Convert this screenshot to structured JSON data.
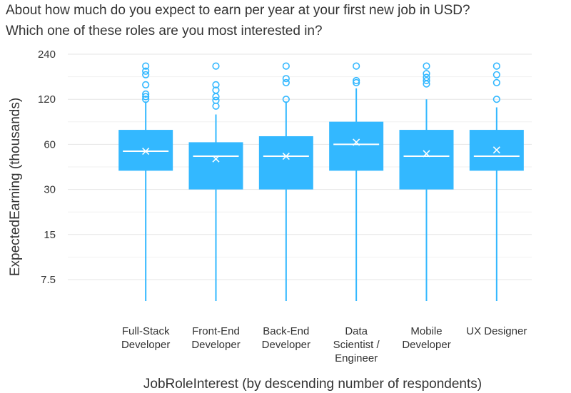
{
  "chart_data": {
    "type": "boxplot",
    "title_lines": [
      "About how much do you expect to earn per year at your first new job in USD?",
      "Which one of these roles are you most interested in?"
    ],
    "xlabel": "JobRoleInterest (by descending number of respondents)",
    "ylabel": "ExpectedEarning (thousands)",
    "yscale": "log2",
    "ylim": [
      5.4,
      270
    ],
    "yticks": [
      7.5,
      15,
      30,
      60,
      120,
      240
    ],
    "ytick_labels": [
      "7.5",
      "15",
      "30",
      "60",
      "120",
      "240"
    ],
    "color": "#33b8ff",
    "categories": [
      {
        "lines": [
          "Full-Stack",
          "Developer"
        ],
        "whisker_low": 5.4,
        "q1": 40,
        "median": 54,
        "q3": 75,
        "whisker_high": 116,
        "mean": 54,
        "outliers": [
          200,
          185,
          175,
          150,
          130,
          125,
          120
        ]
      },
      {
        "lines": [
          "Front-End",
          "Developer"
        ],
        "whisker_low": 5.4,
        "q1": 30,
        "median": 50,
        "q3": 62,
        "whisker_high": 95,
        "mean": 48,
        "outliers": [
          200,
          150,
          138,
          125,
          118,
          108
        ]
      },
      {
        "lines": [
          "Back-End",
          "Developer"
        ],
        "whisker_low": 5.4,
        "q1": 30,
        "median": 50,
        "q3": 68,
        "whisker_high": 116,
        "mean": 50,
        "outliers": [
          200,
          165,
          155,
          120
        ]
      },
      {
        "lines": [
          "Data",
          "Scientist /",
          "Engineer"
        ],
        "whisker_low": 5.4,
        "q1": 40,
        "median": 60,
        "q3": 85,
        "whisker_high": 142,
        "mean": 62,
        "outliers": [
          200,
          160,
          155
        ]
      },
      {
        "lines": [
          "Mobile",
          "Developer"
        ],
        "whisker_low": 5.4,
        "q1": 30,
        "median": 50,
        "q3": 75,
        "whisker_high": 120,
        "mean": 52,
        "outliers": [
          200,
          178,
          168,
          160,
          152
        ]
      },
      {
        "lines": [
          "UX Designer"
        ],
        "whisker_low": 5.4,
        "q1": 40,
        "median": 50,
        "q3": 75,
        "whisker_high": 106,
        "mean": 55,
        "outliers": [
          200,
          175,
          155,
          120
        ]
      }
    ]
  }
}
